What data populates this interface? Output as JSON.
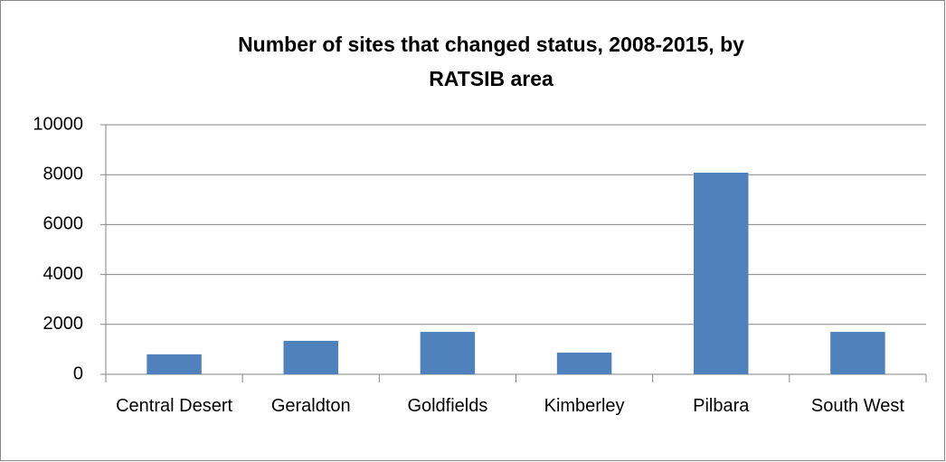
{
  "chart_data": {
    "type": "bar",
    "title": "Number of sites that changed status, 2008-2015, by RATSIB area",
    "categories": [
      "Central Desert",
      "Geraldton",
      "Goldfields",
      "Kimberley",
      "Pilbara",
      "South West"
    ],
    "values": [
      800,
      1340,
      1700,
      870,
      8080,
      1700
    ],
    "color": "#4f81bd",
    "ylim": [
      0,
      10000
    ],
    "yticks": [
      0,
      2000,
      4000,
      6000,
      8000,
      10000
    ],
    "grid": true
  }
}
